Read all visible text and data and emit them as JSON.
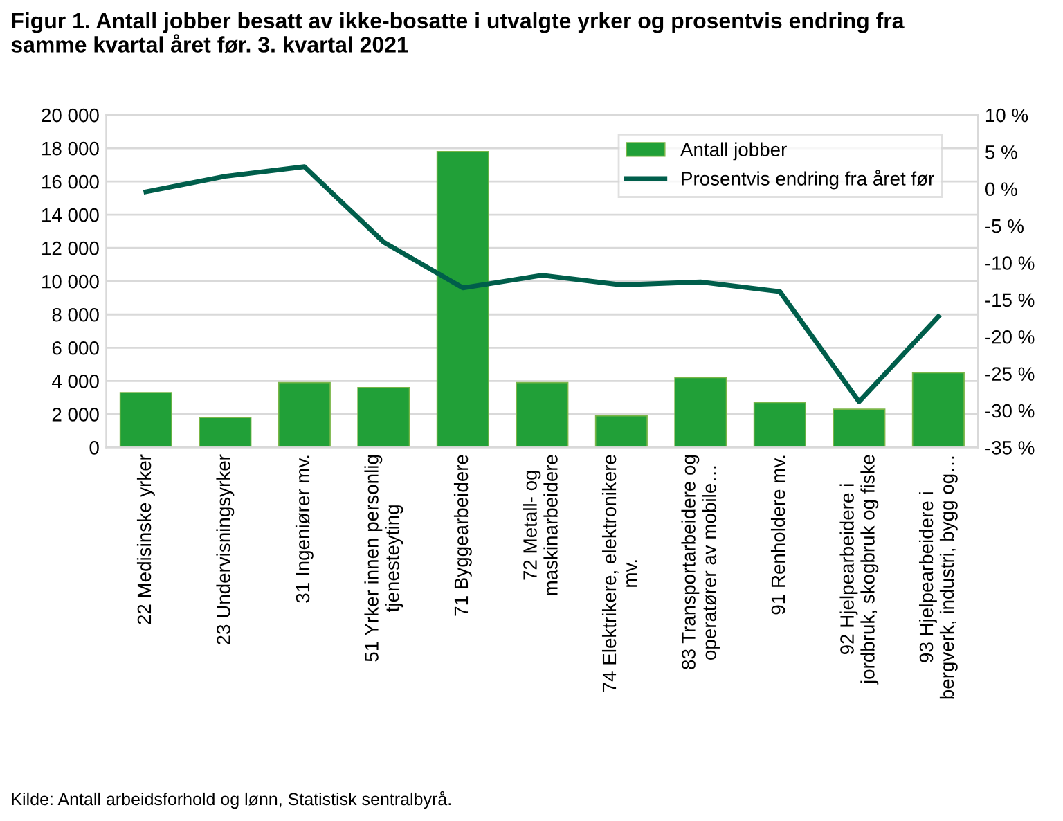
{
  "chart_data": {
    "type": "bar",
    "title": "Figur 1. Antall jobber besatt av ikke-bosatte i utvalgte yrker og prosentvis endring fra\nsamme kvartal året før. 3. kvartal 2021",
    "categories": [
      "22 Medisinske yrker",
      "23 Undervisningsyrker",
      "31 Ingeniører mv.",
      "51 Yrker innen personlig\ntjenesteyting",
      "71 Byggearbeidere",
      "72 Metall- og\nmaskinarbeidere",
      "74 Elektrikere, elektronikere\nmv.",
      "83 Transportarbeidere og\noperatører av mobile…",
      "91 Renholdere mv.",
      "92 Hjelpearbeidere i\njordbruk, skogbruk og fiske",
      "93 Hjelpearbeidere i\nbergverk, industri, bygg og…"
    ],
    "series": [
      {
        "name": "Antall jobber",
        "color": "#21a038",
        "values": [
          3300,
          1800,
          3900,
          3600,
          17800,
          3900,
          1900,
          4200,
          2700,
          2300,
          4500
        ]
      },
      {
        "name": "Prosentvis endring fra året før",
        "type": "line",
        "axis": "y2",
        "color": "#005e4b",
        "values": [
          -0.4,
          1.7,
          3.0,
          -7.2,
          -13.4,
          -11.7,
          -13.0,
          -12.6,
          -13.9,
          -28.8,
          -17.3
        ]
      }
    ],
    "ylim": [
      0,
      20000
    ],
    "yticks": [
      {
        "value": 0,
        "label": "0"
      },
      {
        "value": 2000,
        "label": "2 000"
      },
      {
        "value": 4000,
        "label": "4 000"
      },
      {
        "value": 6000,
        "label": "6 000"
      },
      {
        "value": 8000,
        "label": "8 000"
      },
      {
        "value": 10000,
        "label": "10 000"
      },
      {
        "value": 12000,
        "label": "12 000"
      },
      {
        "value": 14000,
        "label": "14 000"
      },
      {
        "value": 16000,
        "label": "16 000"
      },
      {
        "value": 18000,
        "label": "18 000"
      },
      {
        "value": 20000,
        "label": "20 000"
      }
    ],
    "y2lim": [
      -35,
      10
    ],
    "y2ticks": [
      {
        "value": -35,
        "label": "-35 %"
      },
      {
        "value": -30,
        "label": "-30 %"
      },
      {
        "value": -25,
        "label": "-25 %"
      },
      {
        "value": -20,
        "label": "-20 %"
      },
      {
        "value": -15,
        "label": "-15 %"
      },
      {
        "value": -10,
        "label": "-10 %"
      },
      {
        "value": -5,
        "label": "-5 %"
      },
      {
        "value": 0,
        "label": "0 %"
      },
      {
        "value": 5,
        "label": "5 %"
      },
      {
        "value": 10,
        "label": "10 %"
      }
    ],
    "grid": "y",
    "legend": "top right",
    "annotations": [
      "Kilde: Antall arbeidsforhold og lønn, Statistisk sentralbyrå."
    ]
  }
}
